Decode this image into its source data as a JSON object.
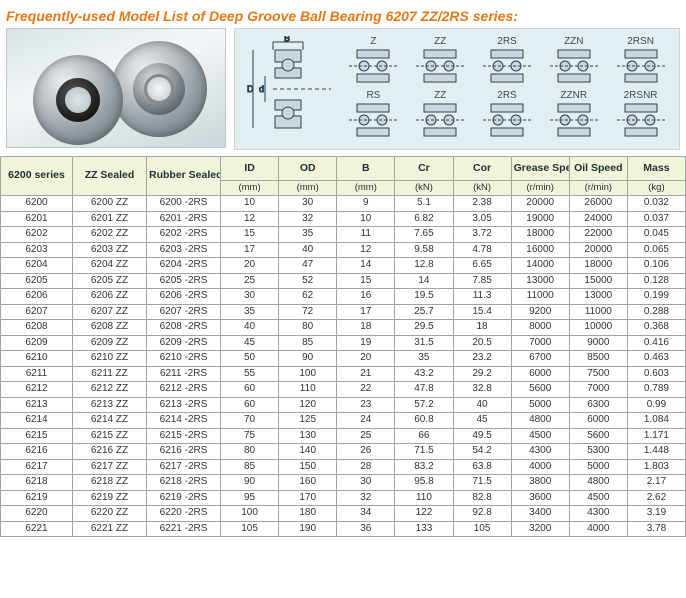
{
  "title": "Frequently-used Model List of Deep Groove Ball Bearing 6207 ZZ/2RS series:",
  "diagram": {
    "labels": {
      "B": "B",
      "D": "D",
      "d": "d"
    },
    "types_row1": [
      "Z",
      "ZZ",
      "2RS",
      "ZZN",
      "2RSN"
    ],
    "types_row2": [
      "RS",
      "ZZ",
      "2RS",
      "ZZNR",
      "2RSNR"
    ]
  },
  "table": {
    "columns_top": [
      "6200 series",
      "ZZ Sealed",
      "Rubber Sealed",
      "ID",
      "OD",
      "B",
      "Cr",
      "Cor",
      "Grease Speed",
      "Oil Speed",
      "Mass"
    ],
    "columns_unit": [
      "",
      "",
      "",
      "(mm)",
      "(mm)",
      "(mm)",
      "(kN)",
      "(kN)",
      "(r/min)",
      "(r/min)",
      "(kg)"
    ],
    "col_widths": [
      "w-series",
      "w-zz",
      "w-rs",
      "",
      "",
      "",
      "",
      "",
      "",
      "",
      ""
    ],
    "rows": [
      [
        "6200",
        "6200 ZZ",
        "6200 -2RS",
        "10",
        "30",
        "9",
        "5.1",
        "2.38",
        "20000",
        "26000",
        "0.032"
      ],
      [
        "6201",
        "6201 ZZ",
        "6201 -2RS",
        "12",
        "32",
        "10",
        "6.82",
        "3.05",
        "19000",
        "24000",
        "0.037"
      ],
      [
        "6202",
        "6202 ZZ",
        "6202 -2RS",
        "15",
        "35",
        "11",
        "7.65",
        "3.72",
        "18000",
        "22000",
        "0.045"
      ],
      [
        "6203",
        "6203 ZZ",
        "6203 -2RS",
        "17",
        "40",
        "12",
        "9.58",
        "4.78",
        "16000",
        "20000",
        "0.065"
      ],
      [
        "6204",
        "6204 ZZ",
        "6204 -2RS",
        "20",
        "47",
        "14",
        "12.8",
        "6.65",
        "14000",
        "18000",
        "0.106"
      ],
      [
        "6205",
        "6205 ZZ",
        "6205 -2RS",
        "25",
        "52",
        "15",
        "14",
        "7.85",
        "13000",
        "15000",
        "0.128"
      ],
      [
        "6206",
        "6206 ZZ",
        "6206 -2RS",
        "30",
        "62",
        "16",
        "19.5",
        "11.3",
        "11000",
        "13000",
        "0.199"
      ],
      [
        "6207",
        "6207 ZZ",
        "6207 -2RS",
        "35",
        "72",
        "17",
        "25.7",
        "15.4",
        "9200",
        "11000",
        "0.288"
      ],
      [
        "6208",
        "6208 ZZ",
        "6208 -2RS",
        "40",
        "80",
        "18",
        "29.5",
        "18",
        "8000",
        "10000",
        "0.368"
      ],
      [
        "6209",
        "6209 ZZ",
        "6209 -2RS",
        "45",
        "85",
        "19",
        "31.5",
        "20.5",
        "7000",
        "9000",
        "0.416"
      ],
      [
        "6210",
        "6210 ZZ",
        "6210 -2RS",
        "50",
        "90",
        "20",
        "35",
        "23.2",
        "6700",
        "8500",
        "0.463"
      ],
      [
        "6211",
        "6211 ZZ",
        "6211 -2RS",
        "55",
        "100",
        "21",
        "43.2",
        "29.2",
        "6000",
        "7500",
        "0.603"
      ],
      [
        "6212",
        "6212 ZZ",
        "6212 -2RS",
        "60",
        "110",
        "22",
        "47.8",
        "32.8",
        "5600",
        "7000",
        "0.789"
      ],
      [
        "6213",
        "6213 ZZ",
        "6213 -2RS",
        "60",
        "120",
        "23",
        "57.2",
        "40",
        "5000",
        "6300",
        "0.99"
      ],
      [
        "6214",
        "6214 ZZ",
        "6214 -2RS",
        "70",
        "125",
        "24",
        "60.8",
        "45",
        "4800",
        "6000",
        "1.084"
      ],
      [
        "6215",
        "6215 ZZ",
        "6215 -2RS",
        "75",
        "130",
        "25",
        "66",
        "49.5",
        "4500",
        "5600",
        "1.171"
      ],
      [
        "6216",
        "6216 ZZ",
        "6216 -2RS",
        "80",
        "140",
        "26",
        "71.5",
        "54.2",
        "4300",
        "5300",
        "1.448"
      ],
      [
        "6217",
        "6217 ZZ",
        "6217 -2RS",
        "85",
        "150",
        "28",
        "83.2",
        "63.8",
        "4000",
        "5000",
        "1.803"
      ],
      [
        "6218",
        "6218 ZZ",
        "6218 -2RS",
        "90",
        "160",
        "30",
        "95.8",
        "71.5",
        "3800",
        "4800",
        "2.17"
      ],
      [
        "6219",
        "6219 ZZ",
        "6219 -2RS",
        "95",
        "170",
        "32",
        "110",
        "82.8",
        "3600",
        "4500",
        "2.62"
      ],
      [
        "6220",
        "6220 ZZ",
        "6220 -2RS",
        "100",
        "180",
        "34",
        "122",
        "92.8",
        "3400",
        "4300",
        "3.19"
      ],
      [
        "6221",
        "6221 ZZ",
        "6221 -2RS",
        "105",
        "190",
        "36",
        "133",
        "105",
        "3200",
        "4000",
        "3.78"
      ]
    ]
  },
  "styling": {
    "title_color": "#e67817",
    "header_bg": "#f0f5da",
    "border_color": "#9ca6ac",
    "diagram_bg": "#e3eef2"
  }
}
